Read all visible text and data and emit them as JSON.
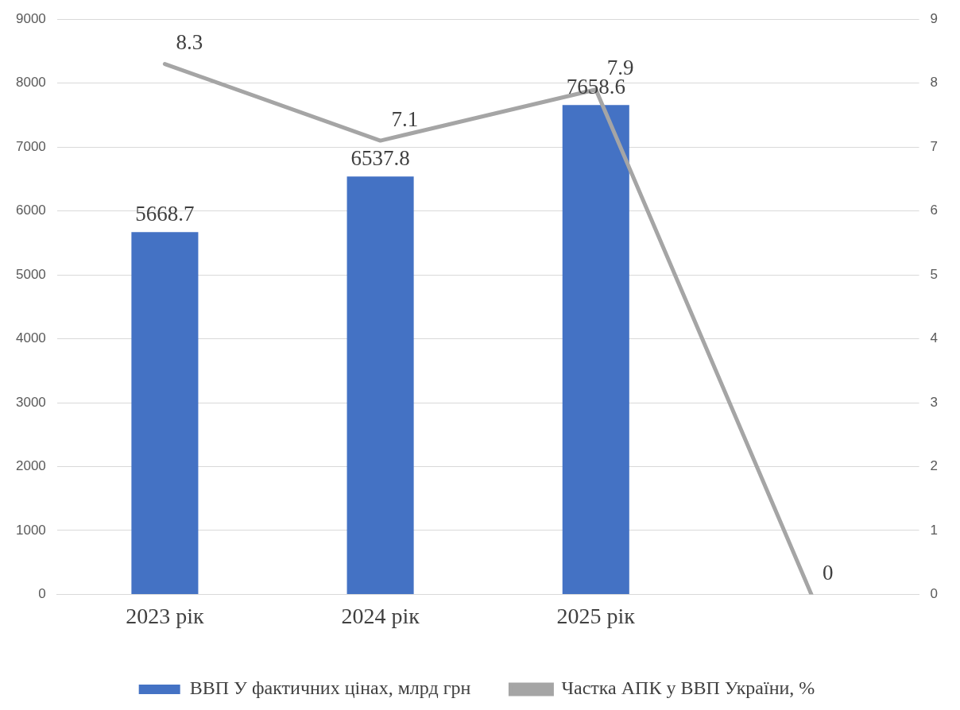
{
  "chart_data": {
    "type": "bar",
    "categories": [
      "2023 рік",
      "2024 рік",
      "2025 рік",
      null
    ],
    "series": [
      {
        "name": "ВВП У фактичних цінах, млрд грн",
        "color": "#4472c4",
        "values": [
          5668.7,
          6537.8,
          7658.6,
          null
        ]
      },
      {
        "name": "Частка АПК у ВВП України, %",
        "type": "line",
        "axis": "y2",
        "color": "#a5a5a5",
        "values": [
          8.3,
          7.1,
          7.9,
          0
        ]
      }
    ],
    "ylim": [
      0,
      9000
    ],
    "yticks": [
      0,
      1000,
      2000,
      3000,
      4000,
      5000,
      6000,
      7000,
      8000,
      9000
    ],
    "y2lim": [
      0,
      9
    ],
    "y2ticks": [
      0,
      1,
      2,
      3,
      4,
      5,
      6,
      7,
      8,
      9
    ],
    "grid": "y",
    "legend": "bottom",
    "data_labels": true,
    "marker": "none"
  }
}
